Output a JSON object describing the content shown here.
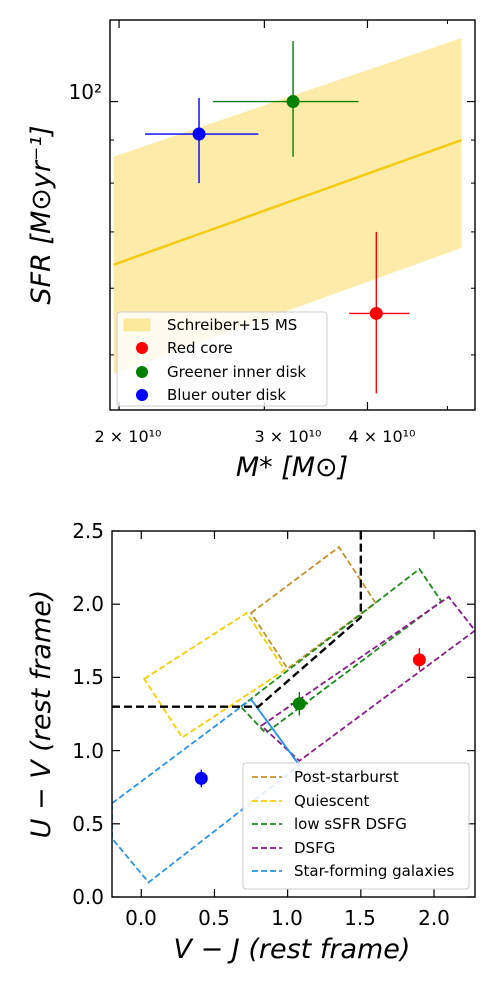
{
  "chart_data": [
    {
      "type": "scatter",
      "xlabel": "M* [M⊙]",
      "ylabel": "SFR [M⊙yr⁻¹]",
      "xscale": "log",
      "yscale": "log",
      "xlim": [
        19500000000,
        54000000000
      ],
      "ylim": [
        43,
        125
      ],
      "x_tick_labels": [
        "2 × 10¹⁰",
        "3 × 10¹⁰",
        "4 × 10¹⁰"
      ],
      "y_tick_labels": [
        "10²"
      ],
      "band": {
        "name": "Schreiber+15 MS",
        "color": "#fde99a",
        "line_color": "#f5cc12",
        "x": [
          19700000000,
          52000000000
        ],
        "median": [
          64,
          90
        ],
        "lower": [
          47.5,
          67
        ],
        "upper": [
          86,
          119
        ]
      },
      "points": [
        {
          "name": "Red core",
          "color": "#ff0000",
          "x": 41000000000,
          "y": 56,
          "x_range": [
            38000000000,
            45000000000
          ],
          "y_range": [
            45,
            70
          ]
        },
        {
          "name": "Greener inner disk",
          "color": "#008000",
          "x": 32500000000,
          "y": 100,
          "x_range": [
            26000000000,
            39000000000
          ],
          "y_range": [
            86,
            118
          ]
        },
        {
          "name": "Bluer outer disk",
          "color": "#0000ff",
          "x": 25000000000,
          "y": 91.5,
          "x_range": [
            21500000000,
            29500000000
          ],
          "y_range": [
            80,
            101
          ]
        }
      ],
      "legend_position": "lower-left"
    },
    {
      "type": "scatter",
      "xlabel": "V − J (rest frame)",
      "ylabel": "U − V (rest frame)",
      "xlim": [
        -0.2,
        2.28
      ],
      "ylim": [
        0.0,
        2.5
      ],
      "x_ticks": [
        "0.0",
        "0.5",
        "1.0",
        "1.5",
        "2.0"
      ],
      "y_ticks": [
        "0.0",
        "0.5",
        "1.0",
        "1.5",
        "2.0",
        "2.5"
      ],
      "boundary": {
        "color": "#000000",
        "points": [
          [
            -0.2,
            1.3
          ],
          [
            0.8,
            1.3
          ],
          [
            1.5,
            1.91
          ],
          [
            1.5,
            2.5
          ]
        ]
      },
      "regions": [
        {
          "name": "Post-starburst",
          "color": "#c4922c",
          "points": [
            [
              0.75,
              1.94
            ],
            [
              1.35,
              2.39
            ],
            [
              1.6,
              2.01
            ],
            [
              1.0,
              1.56
            ]
          ]
        },
        {
          "name": "Quiescent",
          "color": "#f5d000",
          "points": [
            [
              0.02,
              1.49
            ],
            [
              0.72,
              1.94
            ],
            [
              0.98,
              1.55
            ],
            [
              0.28,
              1.09
            ]
          ]
        },
        {
          "name": "low sSFR DSFG",
          "color": "#1c8c1c",
          "points": [
            [
              0.68,
              1.3
            ],
            [
              1.9,
              2.24
            ],
            [
              2.05,
              2.02
            ],
            [
              0.85,
              1.12
            ]
          ]
        },
        {
          "name": "DSFG",
          "color": "#8c1c8c",
          "points": [
            [
              0.82,
              1.17
            ],
            [
              2.1,
              2.05
            ],
            [
              2.28,
              1.82
            ],
            [
              1.08,
              0.93
            ]
          ]
        },
        {
          "name": "Star-forming galaxies",
          "color": "#2994e8",
          "points": [
            [
              -0.2,
              0.64
            ],
            [
              0.75,
              1.35
            ],
            [
              1.08,
              0.9
            ],
            [
              0.05,
              0.1
            ],
            [
              -0.2,
              0.4
            ]
          ]
        },
        {
          "name": "SF-divider",
          "color": "#2994e8",
          "points": [
            [
              0.75,
              1.35
            ],
            [
              1.08,
              0.9
            ]
          ],
          "solid": true
        }
      ],
      "points": [
        {
          "name": "Red core",
          "color": "#ff0000",
          "x": 1.9,
          "y": 1.62,
          "x_range": [
            1.86,
            1.94
          ],
          "y_range": [
            1.55,
            1.7
          ]
        },
        {
          "name": "Greener inner disk",
          "color": "#008000",
          "x": 1.08,
          "y": 1.32,
          "x_range": [
            1.02,
            1.14
          ],
          "y_range": [
            1.24,
            1.4
          ]
        },
        {
          "name": "Bluer outer disk",
          "color": "#0000ff",
          "x": 0.41,
          "y": 0.81,
          "x_range": [
            0.38,
            0.44
          ],
          "y_range": [
            0.75,
            0.87
          ]
        }
      ],
      "legend_position": "lower-right"
    }
  ]
}
